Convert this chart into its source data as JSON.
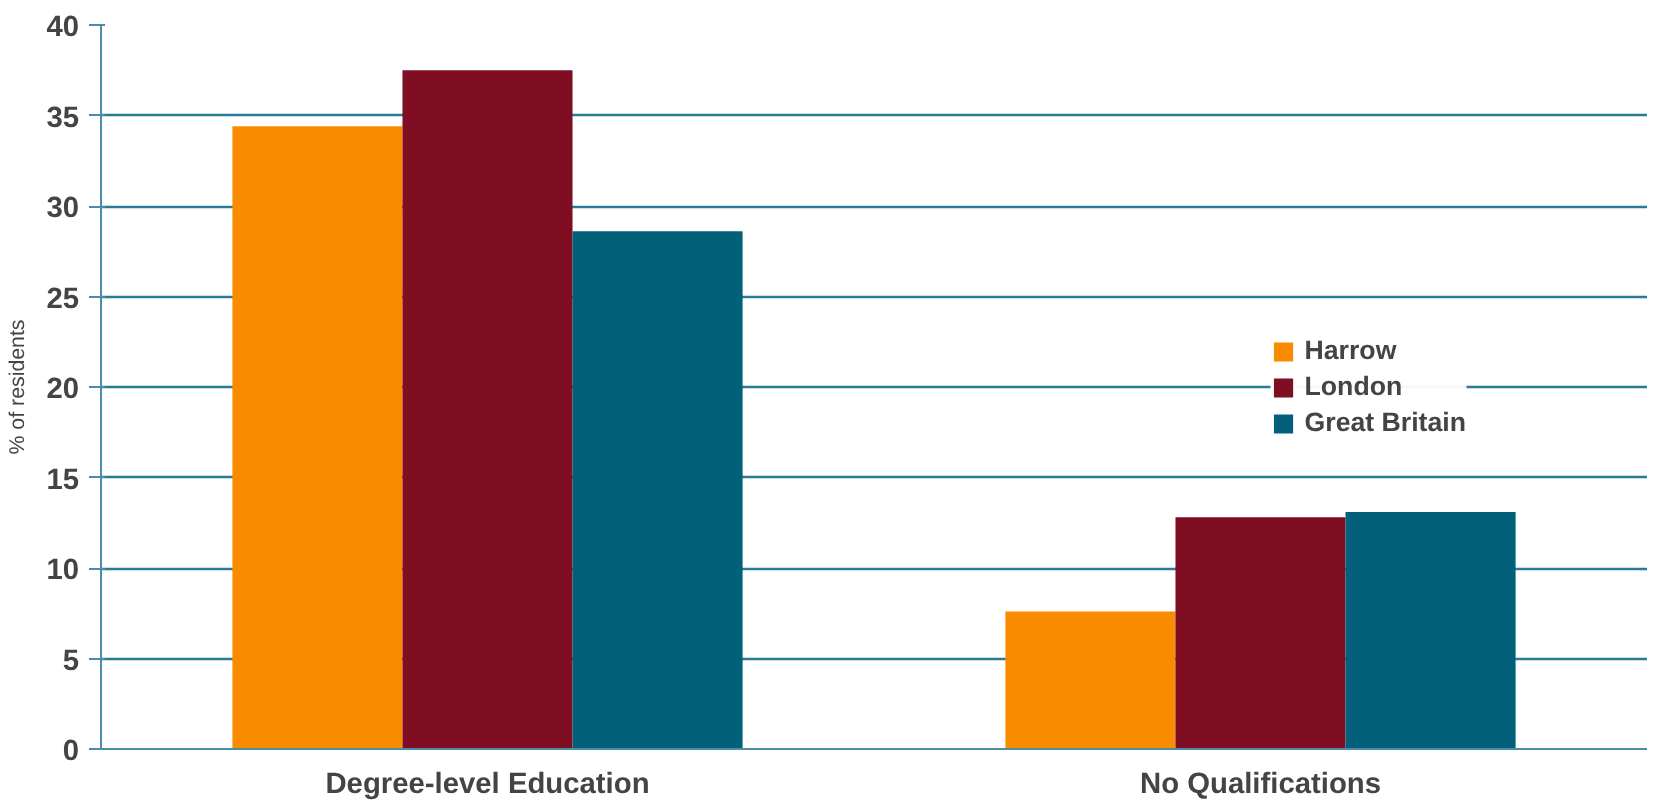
{
  "chart_data": {
    "type": "bar",
    "ylabel": "% of residents",
    "categories": [
      "Degree-level Education",
      "No Qualifications"
    ],
    "series": [
      {
        "name": "Harrow",
        "color": "#f98b00",
        "values": [
          34.4,
          7.6
        ]
      },
      {
        "name": "London",
        "color": "#800e22",
        "values": [
          37.5,
          12.8
        ]
      },
      {
        "name": "Great Britain",
        "color": "#02607a",
        "values": [
          28.6,
          13.1
        ]
      }
    ],
    "ylim": [
      0,
      40
    ],
    "yticks": [
      0,
      5,
      10,
      15,
      20,
      25,
      30,
      35,
      40
    ],
    "grid": "y",
    "legend": "right"
  }
}
